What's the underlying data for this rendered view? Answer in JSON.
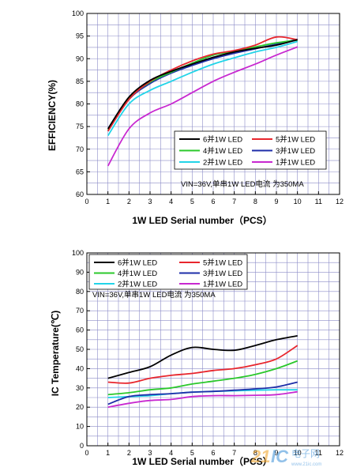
{
  "colors": {
    "s6": "#000000",
    "s5": "#e8262d",
    "s4": "#2bc82b",
    "s3": "#1e2ea8",
    "s2": "#22d4e8",
    "s1": "#c828d0",
    "grid": "#8c8cc8"
  },
  "chart_data": [
    {
      "type": "line",
      "xlabel": "1W  LED Serial number（PCS）",
      "ylabel": "EFFICIENCY(%)",
      "xlim": [
        0,
        12
      ],
      "ylim": [
        60,
        100
      ],
      "xticks": [
        "0",
        "1",
        "2",
        "3",
        "4",
        "5",
        "6",
        "7",
        "8",
        "9",
        "10",
        "11",
        "12"
      ],
      "yticks": [
        "60",
        "65",
        "70",
        "75",
        "80",
        "85",
        "90",
        "95",
        "100"
      ],
      "grid": true,
      "legend_position": "bottom-right",
      "note": "VIN=36V,单串1W LED电流 为350MA",
      "series": [
        {
          "name": "6并1W LED",
          "color_key": "s6",
          "x": [
            1,
            2,
            3,
            4,
            5,
            6,
            7,
            8,
            9,
            10
          ],
          "values": [
            74.5,
            81.5,
            85.2,
            87.2,
            88.8,
            90.3,
            91.5,
            92.3,
            93.0,
            94.2
          ]
        },
        {
          "name": "5并1W LED",
          "color_key": "s5",
          "x": [
            1,
            2,
            3,
            4,
            5,
            6,
            7,
            8,
            9,
            10
          ],
          "values": [
            74.0,
            81.0,
            85.0,
            87.5,
            89.5,
            91.0,
            91.8,
            93.0,
            94.8,
            94.2
          ]
        },
        {
          "name": "4并1W LED",
          "color_key": "s4",
          "x": [
            1,
            2,
            3,
            4,
            5,
            6,
            7,
            8,
            9,
            10
          ],
          "values": [
            74.2,
            81.2,
            84.8,
            87.0,
            89.0,
            90.8,
            91.6,
            92.6,
            93.5,
            94.1
          ]
        },
        {
          "name": "3并1W LED",
          "color_key": "s3",
          "x": [
            1,
            2,
            3,
            4,
            5,
            6,
            7,
            8,
            9,
            10
          ],
          "values": [
            74.0,
            81.0,
            84.5,
            86.8,
            88.5,
            90.0,
            91.2,
            92.2,
            93.2,
            94.3
          ]
        },
        {
          "name": "2并1W LED",
          "color_key": "s2",
          "x": [
            1,
            2,
            3,
            4,
            5,
            6,
            7,
            8,
            9,
            10
          ],
          "values": [
            73.0,
            80.0,
            83.0,
            85.0,
            87.0,
            88.8,
            90.2,
            91.5,
            92.5,
            93.8
          ]
        },
        {
          "name": "1并1W LED",
          "color_key": "s1",
          "x": [
            1,
            2,
            3,
            4,
            5,
            6,
            7,
            8,
            9,
            10
          ],
          "values": [
            66.3,
            74.5,
            78.0,
            80.0,
            82.5,
            85.0,
            87.0,
            88.8,
            90.8,
            92.6
          ]
        }
      ]
    },
    {
      "type": "line",
      "xlabel": "1W  LED Serial number（PCS）",
      "ylabel": "IC Temperature(℃)",
      "xlim": [
        0,
        12
      ],
      "ylim": [
        0,
        100
      ],
      "xticks": [
        "0",
        "1",
        "2",
        "3",
        "4",
        "5",
        "6",
        "7",
        "8",
        "9",
        "10",
        "11",
        "12"
      ],
      "yticks": [
        "0",
        "10",
        "20",
        "30",
        "40",
        "50",
        "60",
        "70",
        "80",
        "90",
        "100"
      ],
      "grid": true,
      "legend_position": "top-left",
      "note": "VIN=36V,单串1W LED电流 为350MA",
      "series": [
        {
          "name": "6并1W LED",
          "color_key": "s6",
          "x": [
            1,
            2,
            3,
            4,
            5,
            6,
            7,
            8,
            9,
            10
          ],
          "values": [
            35,
            38,
            41,
            47,
            51,
            50,
            49.5,
            52,
            55,
            57
          ]
        },
        {
          "name": "5并1W LED",
          "color_key": "s5",
          "x": [
            1,
            2,
            3,
            4,
            5,
            6,
            7,
            8,
            9,
            10
          ],
          "values": [
            33,
            32.5,
            35,
            36.5,
            37.5,
            39,
            40,
            42,
            45,
            52
          ]
        },
        {
          "name": "4并1W LED",
          "color_key": "s4",
          "x": [
            1,
            2,
            3,
            4,
            5,
            6,
            7,
            8,
            9,
            10
          ],
          "values": [
            26.5,
            27.5,
            29,
            30,
            32,
            33.5,
            35,
            37,
            40,
            44
          ]
        },
        {
          "name": "3并1W LED",
          "color_key": "s3",
          "x": [
            1,
            2,
            3,
            4,
            5,
            6,
            7,
            8,
            9,
            10
          ],
          "values": [
            21.5,
            25.5,
            26.5,
            27,
            27.8,
            28.2,
            28.8,
            29.5,
            30.5,
            33
          ]
        },
        {
          "name": "2并1W LED",
          "color_key": "s2",
          "x": [
            1,
            2,
            3,
            4,
            5,
            6,
            7,
            8,
            9,
            10
          ],
          "values": [
            25,
            25.5,
            26,
            27,
            27.8,
            28.2,
            28.5,
            28.8,
            29,
            29
          ]
        },
        {
          "name": "1并1W LED",
          "color_key": "s1",
          "x": [
            1,
            2,
            3,
            4,
            5,
            6,
            7,
            8,
            9,
            10
          ],
          "values": [
            20,
            22,
            23.5,
            24,
            25.5,
            26,
            26,
            26.2,
            26.5,
            28
          ]
        }
      ]
    }
  ],
  "watermark": {
    "brand": "21IC",
    "text": "电子网",
    "url": "www.21ic.com"
  }
}
